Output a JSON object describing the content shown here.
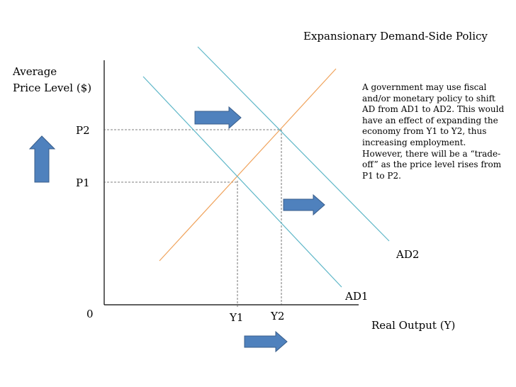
{
  "title": "Expansionary Demand-Side Policy",
  "axes": {
    "y_label_line1": "Average",
    "y_label_line2": "Price Level ($)",
    "x_label": "Real Output (Y)",
    "origin": "0"
  },
  "levels": {
    "p1": "P1",
    "p2": "P2",
    "y1": "Y1",
    "y2": "Y2"
  },
  "curves": {
    "ad1": "AD1",
    "ad2": "AD2"
  },
  "description": "A government may use fiscal and/or monetary policy to shift AD from AD1 to AD2. This would have an effect of expanding the economy from Y1 to Y2, thus increasing employment. However, there will be a “trade-off” as the price level rises from P1 to P2.",
  "colors": {
    "axis": "#000000",
    "ad_curve": "#5fb7c8",
    "as_curve": "#f0a35c",
    "arrow_fill": "#4f81bd",
    "arrow_stroke": "#385d8a",
    "guide": "#555555"
  }
}
